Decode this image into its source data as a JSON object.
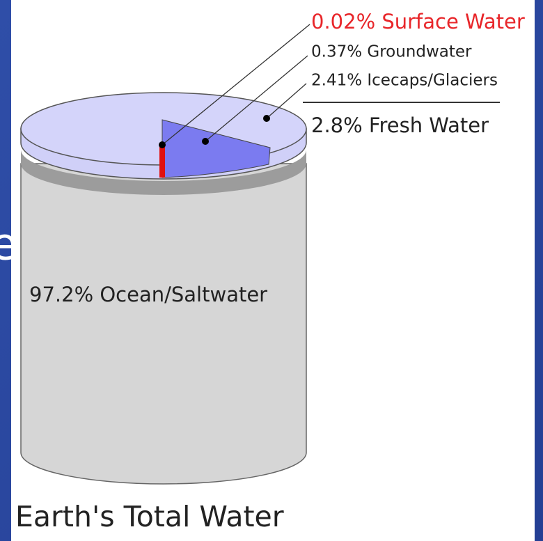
{
  "slide_fragment": "e",
  "labels": {
    "surface": "0.02% Surface Water",
    "groundwater": "0.37% Groundwater",
    "icecaps": "2.41% Icecaps/Glaciers",
    "fresh": "2.8% Fresh Water",
    "ocean": "97.2% Ocean/Saltwater"
  },
  "title": "Earth's Total Water"
}
